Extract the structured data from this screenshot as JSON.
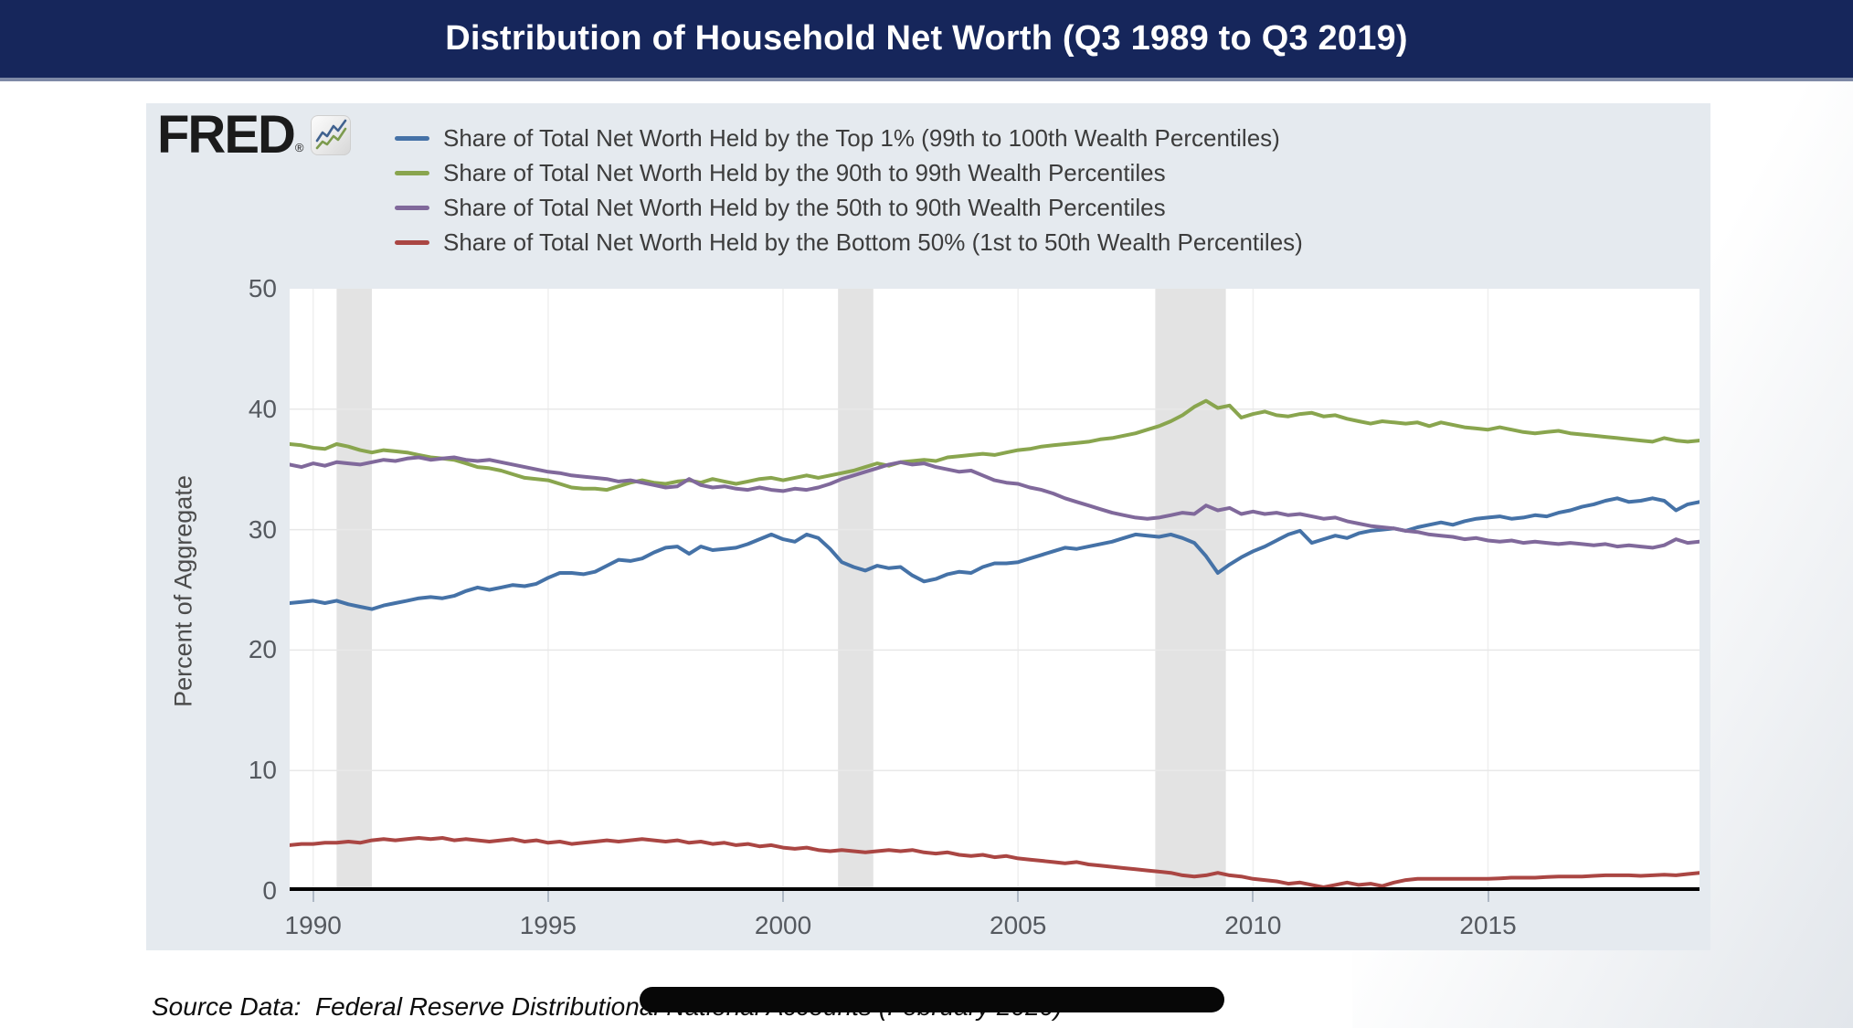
{
  "page": {
    "title": "Distribution of Household Net Worth (Q3 1989 to Q3 2019)"
  },
  "logo": {
    "text": "FRED",
    "registered_mark": "®",
    "icon": "sparkline-chart-icon"
  },
  "legend": {
    "items": [
      {
        "label": "Share of Total Net Worth Held by the Top 1% (99th to 100th Wealth Percentiles)",
        "color": "#4572A7"
      },
      {
        "label": "Share of Total Net Worth Held by the 90th to 99th Wealth Percentiles",
        "color": "#89A54E"
      },
      {
        "label": "Share of Total Net Worth Held by the 50th to 90th Wealth Percentiles",
        "color": "#80699B"
      },
      {
        "label": "Share of Total Net Worth Held by the Bottom 50% (1st to 50th Wealth Percentiles)",
        "color": "#AA4643"
      }
    ]
  },
  "source_line": "Source Data:  Federal Reserve Distributional National Accounts (February 2020)",
  "colors": {
    "header_bg": "#16265B",
    "panel_bg": "#E5EAEF",
    "plot_bg": "#FFFFFF",
    "recession_band": "#E3E3E3",
    "h_gridline": "#E8E8E8",
    "v_gridline": "#EFEFEF",
    "zero_line": "#000000",
    "tick_text": "#55595F"
  },
  "chart_data": {
    "type": "line",
    "title": "Distribution of Household Net Worth (Q3 1989 to Q3 2019)",
    "ylabel": "Percent of Aggregate",
    "xlabel": "",
    "ylim": [
      0,
      50
    ],
    "y_ticks": [
      0,
      10,
      20,
      30,
      40,
      50
    ],
    "x_ticks": [
      1990,
      1995,
      2000,
      2005,
      2010,
      2015
    ],
    "x_start": 1989.5,
    "x_end": 2019.5,
    "x_step": 0.25,
    "x_unit": "year (quarterly, Q3 1989 to Q3 2019)",
    "grid": true,
    "legend_position": "top",
    "recession_bands": [
      [
        1990.5,
        1991.25
      ],
      [
        2001.17,
        2001.92
      ],
      [
        2007.92,
        2009.42
      ]
    ],
    "series": [
      {
        "name": "Share of Total Net Worth Held by the Top 1% (99th to 100th Wealth Percentiles)",
        "color": "#4572A7",
        "values": [
          23.9,
          24.0,
          24.1,
          23.9,
          24.1,
          23.8,
          23.6,
          23.4,
          23.7,
          23.9,
          24.1,
          24.3,
          24.4,
          24.3,
          24.5,
          24.9,
          25.2,
          25.0,
          25.2,
          25.4,
          25.3,
          25.5,
          26.0,
          26.4,
          26.4,
          26.3,
          26.5,
          27.0,
          27.5,
          27.4,
          27.6,
          28.1,
          28.5,
          28.6,
          28.0,
          28.6,
          28.3,
          28.4,
          28.5,
          28.8,
          29.2,
          29.6,
          29.2,
          29.0,
          29.6,
          29.3,
          28.4,
          27.3,
          26.9,
          26.6,
          27.0,
          26.8,
          26.9,
          26.2,
          25.7,
          25.9,
          26.3,
          26.5,
          26.4,
          26.9,
          27.2,
          27.2,
          27.3,
          27.6,
          27.9,
          28.2,
          28.5,
          28.4,
          28.6,
          28.8,
          29.0,
          29.3,
          29.6,
          29.5,
          29.4,
          29.6,
          29.3,
          28.9,
          27.8,
          26.4,
          27.1,
          27.7,
          28.2,
          28.6,
          29.1,
          29.6,
          29.9,
          28.9,
          29.2,
          29.5,
          29.3,
          29.7,
          29.9,
          30.0,
          30.1,
          29.9,
          30.2,
          30.4,
          30.6,
          30.4,
          30.7,
          30.9,
          31.0,
          31.1,
          30.9,
          31.0,
          31.2,
          31.1,
          31.4,
          31.6,
          31.9,
          32.1,
          32.4,
          32.6,
          32.3,
          32.4,
          32.6,
          32.4,
          31.6,
          32.1,
          32.3
        ]
      },
      {
        "name": "Share of Total Net Worth Held by the 90th to 99th Wealth Percentiles",
        "color": "#89A54E",
        "values": [
          37.1,
          37.0,
          36.8,
          36.7,
          37.1,
          36.9,
          36.6,
          36.4,
          36.6,
          36.5,
          36.4,
          36.2,
          36.0,
          35.9,
          35.8,
          35.5,
          35.2,
          35.1,
          34.9,
          34.6,
          34.3,
          34.2,
          34.1,
          33.8,
          33.5,
          33.4,
          33.4,
          33.3,
          33.6,
          33.9,
          34.1,
          33.9,
          33.8,
          34.0,
          34.1,
          33.9,
          34.2,
          34.0,
          33.8,
          34.0,
          34.2,
          34.3,
          34.1,
          34.3,
          34.5,
          34.3,
          34.5,
          34.7,
          34.9,
          35.2,
          35.5,
          35.3,
          35.6,
          35.7,
          35.8,
          35.7,
          36.0,
          36.1,
          36.2,
          36.3,
          36.2,
          36.4,
          36.6,
          36.7,
          36.9,
          37.0,
          37.1,
          37.2,
          37.3,
          37.5,
          37.6,
          37.8,
          38.0,
          38.3,
          38.6,
          39.0,
          39.5,
          40.2,
          40.7,
          40.1,
          40.3,
          39.3,
          39.6,
          39.8,
          39.5,
          39.4,
          39.6,
          39.7,
          39.4,
          39.5,
          39.2,
          39.0,
          38.8,
          39.0,
          38.9,
          38.8,
          38.9,
          38.6,
          38.9,
          38.7,
          38.5,
          38.4,
          38.3,
          38.5,
          38.3,
          38.1,
          38.0,
          38.1,
          38.2,
          38.0,
          37.9,
          37.8,
          37.7,
          37.6,
          37.5,
          37.4,
          37.3,
          37.6,
          37.4,
          37.3,
          37.4
        ]
      },
      {
        "name": "Share of Total Net Worth Held by the 50th to 90th Wealth Percentiles",
        "color": "#80699B",
        "values": [
          35.4,
          35.2,
          35.5,
          35.3,
          35.6,
          35.5,
          35.4,
          35.6,
          35.8,
          35.7,
          35.9,
          36.0,
          35.8,
          35.9,
          36.0,
          35.8,
          35.7,
          35.8,
          35.6,
          35.4,
          35.2,
          35.0,
          34.8,
          34.7,
          34.5,
          34.4,
          34.3,
          34.2,
          34.0,
          34.1,
          33.9,
          33.7,
          33.5,
          33.6,
          34.2,
          33.7,
          33.5,
          33.6,
          33.4,
          33.3,
          33.5,
          33.3,
          33.2,
          33.4,
          33.3,
          33.5,
          33.8,
          34.2,
          34.5,
          34.8,
          35.1,
          35.4,
          35.6,
          35.4,
          35.5,
          35.2,
          35.0,
          34.8,
          34.9,
          34.5,
          34.1,
          33.9,
          33.8,
          33.5,
          33.3,
          33.0,
          32.6,
          32.3,
          32.0,
          31.7,
          31.4,
          31.2,
          31.0,
          30.9,
          31.0,
          31.2,
          31.4,
          31.3,
          32.0,
          31.6,
          31.8,
          31.3,
          31.5,
          31.3,
          31.4,
          31.2,
          31.3,
          31.1,
          30.9,
          31.0,
          30.7,
          30.5,
          30.3,
          30.2,
          30.1,
          29.9,
          29.8,
          29.6,
          29.5,
          29.4,
          29.2,
          29.3,
          29.1,
          29.0,
          29.1,
          28.9,
          29.0,
          28.9,
          28.8,
          28.9,
          28.8,
          28.7,
          28.8,
          28.6,
          28.7,
          28.6,
          28.5,
          28.7,
          29.2,
          28.9,
          29.0
        ]
      },
      {
        "name": "Share of Total Net Worth Held by the Bottom 50% (1st to 50th Wealth Percentiles)",
        "color": "#AA4643",
        "values": [
          3.8,
          3.9,
          3.9,
          4.0,
          4.0,
          4.1,
          4.0,
          4.2,
          4.3,
          4.2,
          4.3,
          4.4,
          4.3,
          4.4,
          4.2,
          4.3,
          4.2,
          4.1,
          4.2,
          4.3,
          4.1,
          4.2,
          4.0,
          4.1,
          3.9,
          4.0,
          4.1,
          4.2,
          4.1,
          4.2,
          4.3,
          4.2,
          4.1,
          4.2,
          4.0,
          4.1,
          3.9,
          4.0,
          3.8,
          3.9,
          3.7,
          3.8,
          3.6,
          3.5,
          3.6,
          3.4,
          3.3,
          3.4,
          3.3,
          3.2,
          3.3,
          3.4,
          3.3,
          3.4,
          3.2,
          3.1,
          3.2,
          3.0,
          2.9,
          3.0,
          2.8,
          2.9,
          2.7,
          2.6,
          2.5,
          2.4,
          2.3,
          2.4,
          2.2,
          2.1,
          2.0,
          1.9,
          1.8,
          1.7,
          1.6,
          1.5,
          1.3,
          1.2,
          1.3,
          1.5,
          1.3,
          1.2,
          1.0,
          0.9,
          0.8,
          0.6,
          0.7,
          0.5,
          0.3,
          0.5,
          0.7,
          0.5,
          0.6,
          0.4,
          0.7,
          0.9,
          1.0,
          1.0,
          1.0,
          1.0,
          1.0,
          1.0,
          1.0,
          1.05,
          1.1,
          1.1,
          1.1,
          1.15,
          1.2,
          1.2,
          1.2,
          1.25,
          1.3,
          1.3,
          1.3,
          1.25,
          1.3,
          1.35,
          1.3,
          1.4,
          1.5
        ]
      }
    ]
  }
}
